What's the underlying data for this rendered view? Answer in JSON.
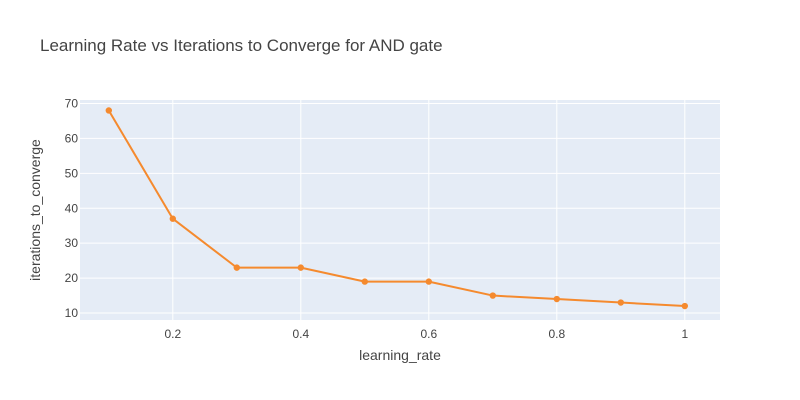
{
  "chart_data": {
    "type": "line",
    "title": "Learning Rate vs Iterations to Converge for AND gate",
    "xlabel": "learning_rate",
    "ylabel": "iterations_to_converge",
    "x": [
      0.1,
      0.2,
      0.3,
      0.4,
      0.5,
      0.6,
      0.7,
      0.8,
      0.9,
      1.0
    ],
    "series": [
      {
        "values": [
          68,
          37,
          23,
          23,
          19,
          19,
          15,
          14,
          13,
          12
        ],
        "color": "#f58a2e"
      }
    ],
    "xlim": [
      0.055,
      1.055
    ],
    "ylim": [
      8,
      71
    ],
    "x_ticks": [
      0.2,
      0.4,
      0.6,
      0.8,
      1
    ],
    "x_tick_labels": [
      "0.2",
      "0.4",
      "0.6",
      "0.8",
      "1"
    ],
    "y_ticks": [
      10,
      20,
      30,
      40,
      50,
      60,
      70
    ],
    "y_tick_labels": [
      "10",
      "20",
      "30",
      "40",
      "50",
      "60",
      "70"
    ],
    "grid": true,
    "plot_bg_color": "#e5ecf6",
    "grid_color": "#ffffff"
  }
}
